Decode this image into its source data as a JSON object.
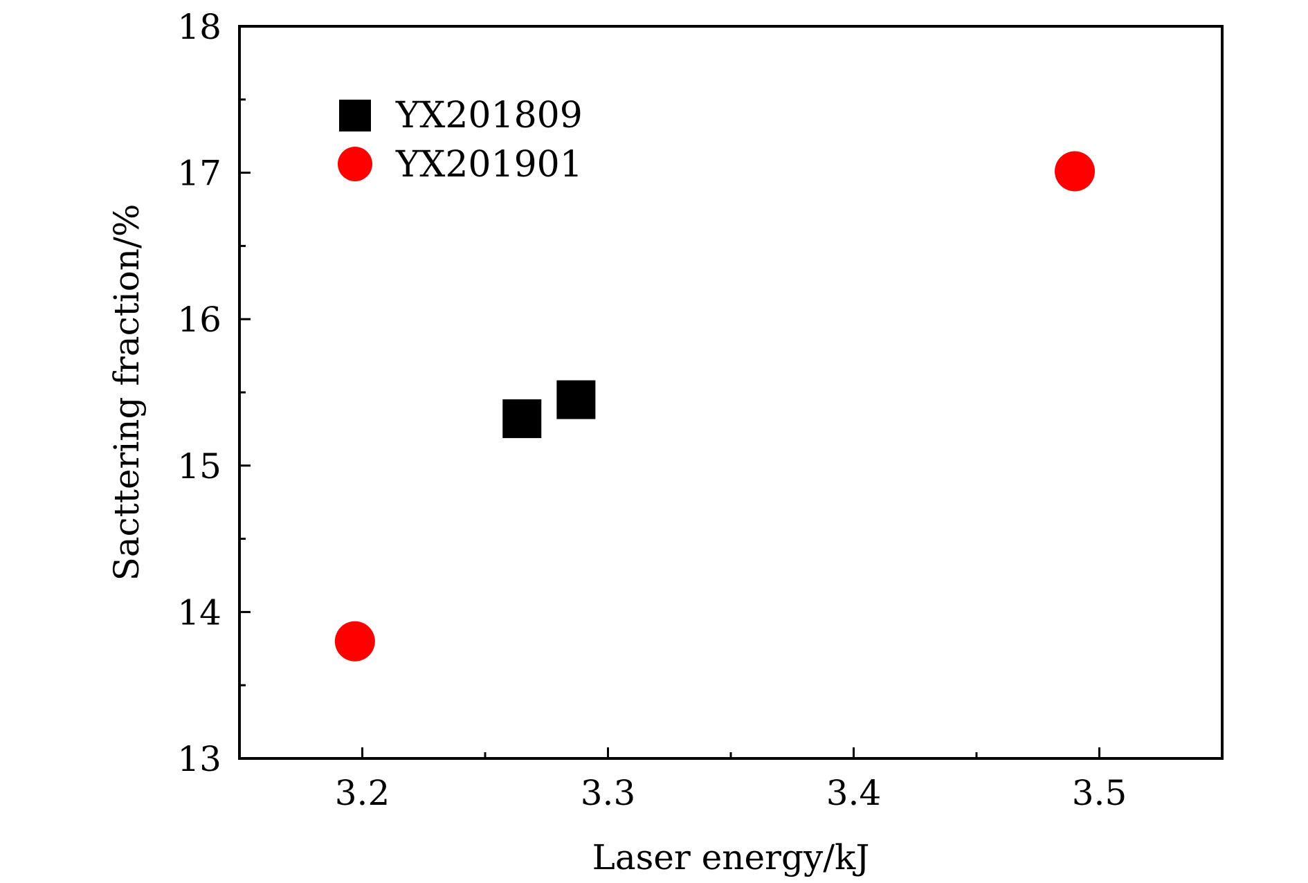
{
  "chart_data": {
    "type": "scatter",
    "xlabel": "Laser energy/kJ",
    "ylabel": "Sacttering fraction/%",
    "xlim": [
      3.15,
      3.55
    ],
    "ylim": [
      13,
      18
    ],
    "xticks": [
      3.2,
      3.3,
      3.4,
      3.5
    ],
    "xtick_labels": [
      "3.2",
      "3.3",
      "3.4",
      "3.5"
    ],
    "xminor": [
      3.25,
      3.35,
      3.45
    ],
    "yticks": [
      13,
      14,
      15,
      16,
      17,
      18
    ],
    "ytick_labels": [
      "13",
      "14",
      "15",
      "16",
      "17",
      "18"
    ],
    "yminor": [
      13.5,
      14.5,
      15.5,
      16.5,
      17.5
    ],
    "grid": false,
    "legend_position": "top-left",
    "series": [
      {
        "name": "YX201809",
        "marker": "square",
        "color": "#000000",
        "points": [
          {
            "x": 3.265,
            "y": 15.32
          },
          {
            "x": 3.287,
            "y": 15.45
          }
        ]
      },
      {
        "name": "YX201901",
        "marker": "circle",
        "color": "#ff0000",
        "points": [
          {
            "x": 3.197,
            "y": 13.8
          },
          {
            "x": 3.49,
            "y": 17.01
          }
        ]
      }
    ]
  }
}
